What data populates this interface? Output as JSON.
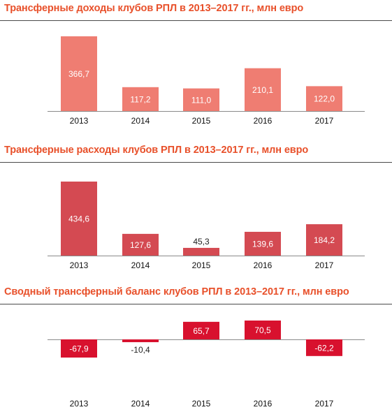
{
  "chart_data": [
    {
      "type": "bar",
      "title": "Трансферные доходы клубов РПЛ в 2013–2017 гг., млн евро",
      "categories": [
        "2013",
        "2014",
        "2015",
        "2016",
        "2017"
      ],
      "values": [
        366.7,
        117.2,
        111.0,
        210.1,
        122.0
      ],
      "value_labels": [
        "366,7",
        "117,2",
        "111,0",
        "210,1",
        "122,0"
      ],
      "color": "#ef7d72",
      "ylim": [
        0,
        370
      ],
      "grid": false
    },
    {
      "type": "bar",
      "title": "Трансферные расходы клубов РПЛ в 2013–2017 гг., млн евро",
      "categories": [
        "2013",
        "2014",
        "2015",
        "2016",
        "2017"
      ],
      "values": [
        434.6,
        127.6,
        45.3,
        139.6,
        184.2
      ],
      "value_labels": [
        "434,6",
        "127,6",
        "45,3",
        "139,6",
        "184,2"
      ],
      "color": "#d44a52",
      "ylim": [
        0,
        440
      ],
      "grid": false
    },
    {
      "type": "bar",
      "title": "Сводный трансферный баланс клубов РПЛ в 2013–2017 гг., млн евро",
      "categories": [
        "2013",
        "2014",
        "2015",
        "2016",
        "2017"
      ],
      "values": [
        -67.9,
        -10.4,
        65.7,
        70.5,
        -62.2
      ],
      "value_labels": [
        "-67,9",
        "-10,4",
        "65,7",
        "70,5",
        "-62,2"
      ],
      "color": "#d8112e",
      "ylim": [
        -70,
        75
      ],
      "grid": false
    }
  ]
}
